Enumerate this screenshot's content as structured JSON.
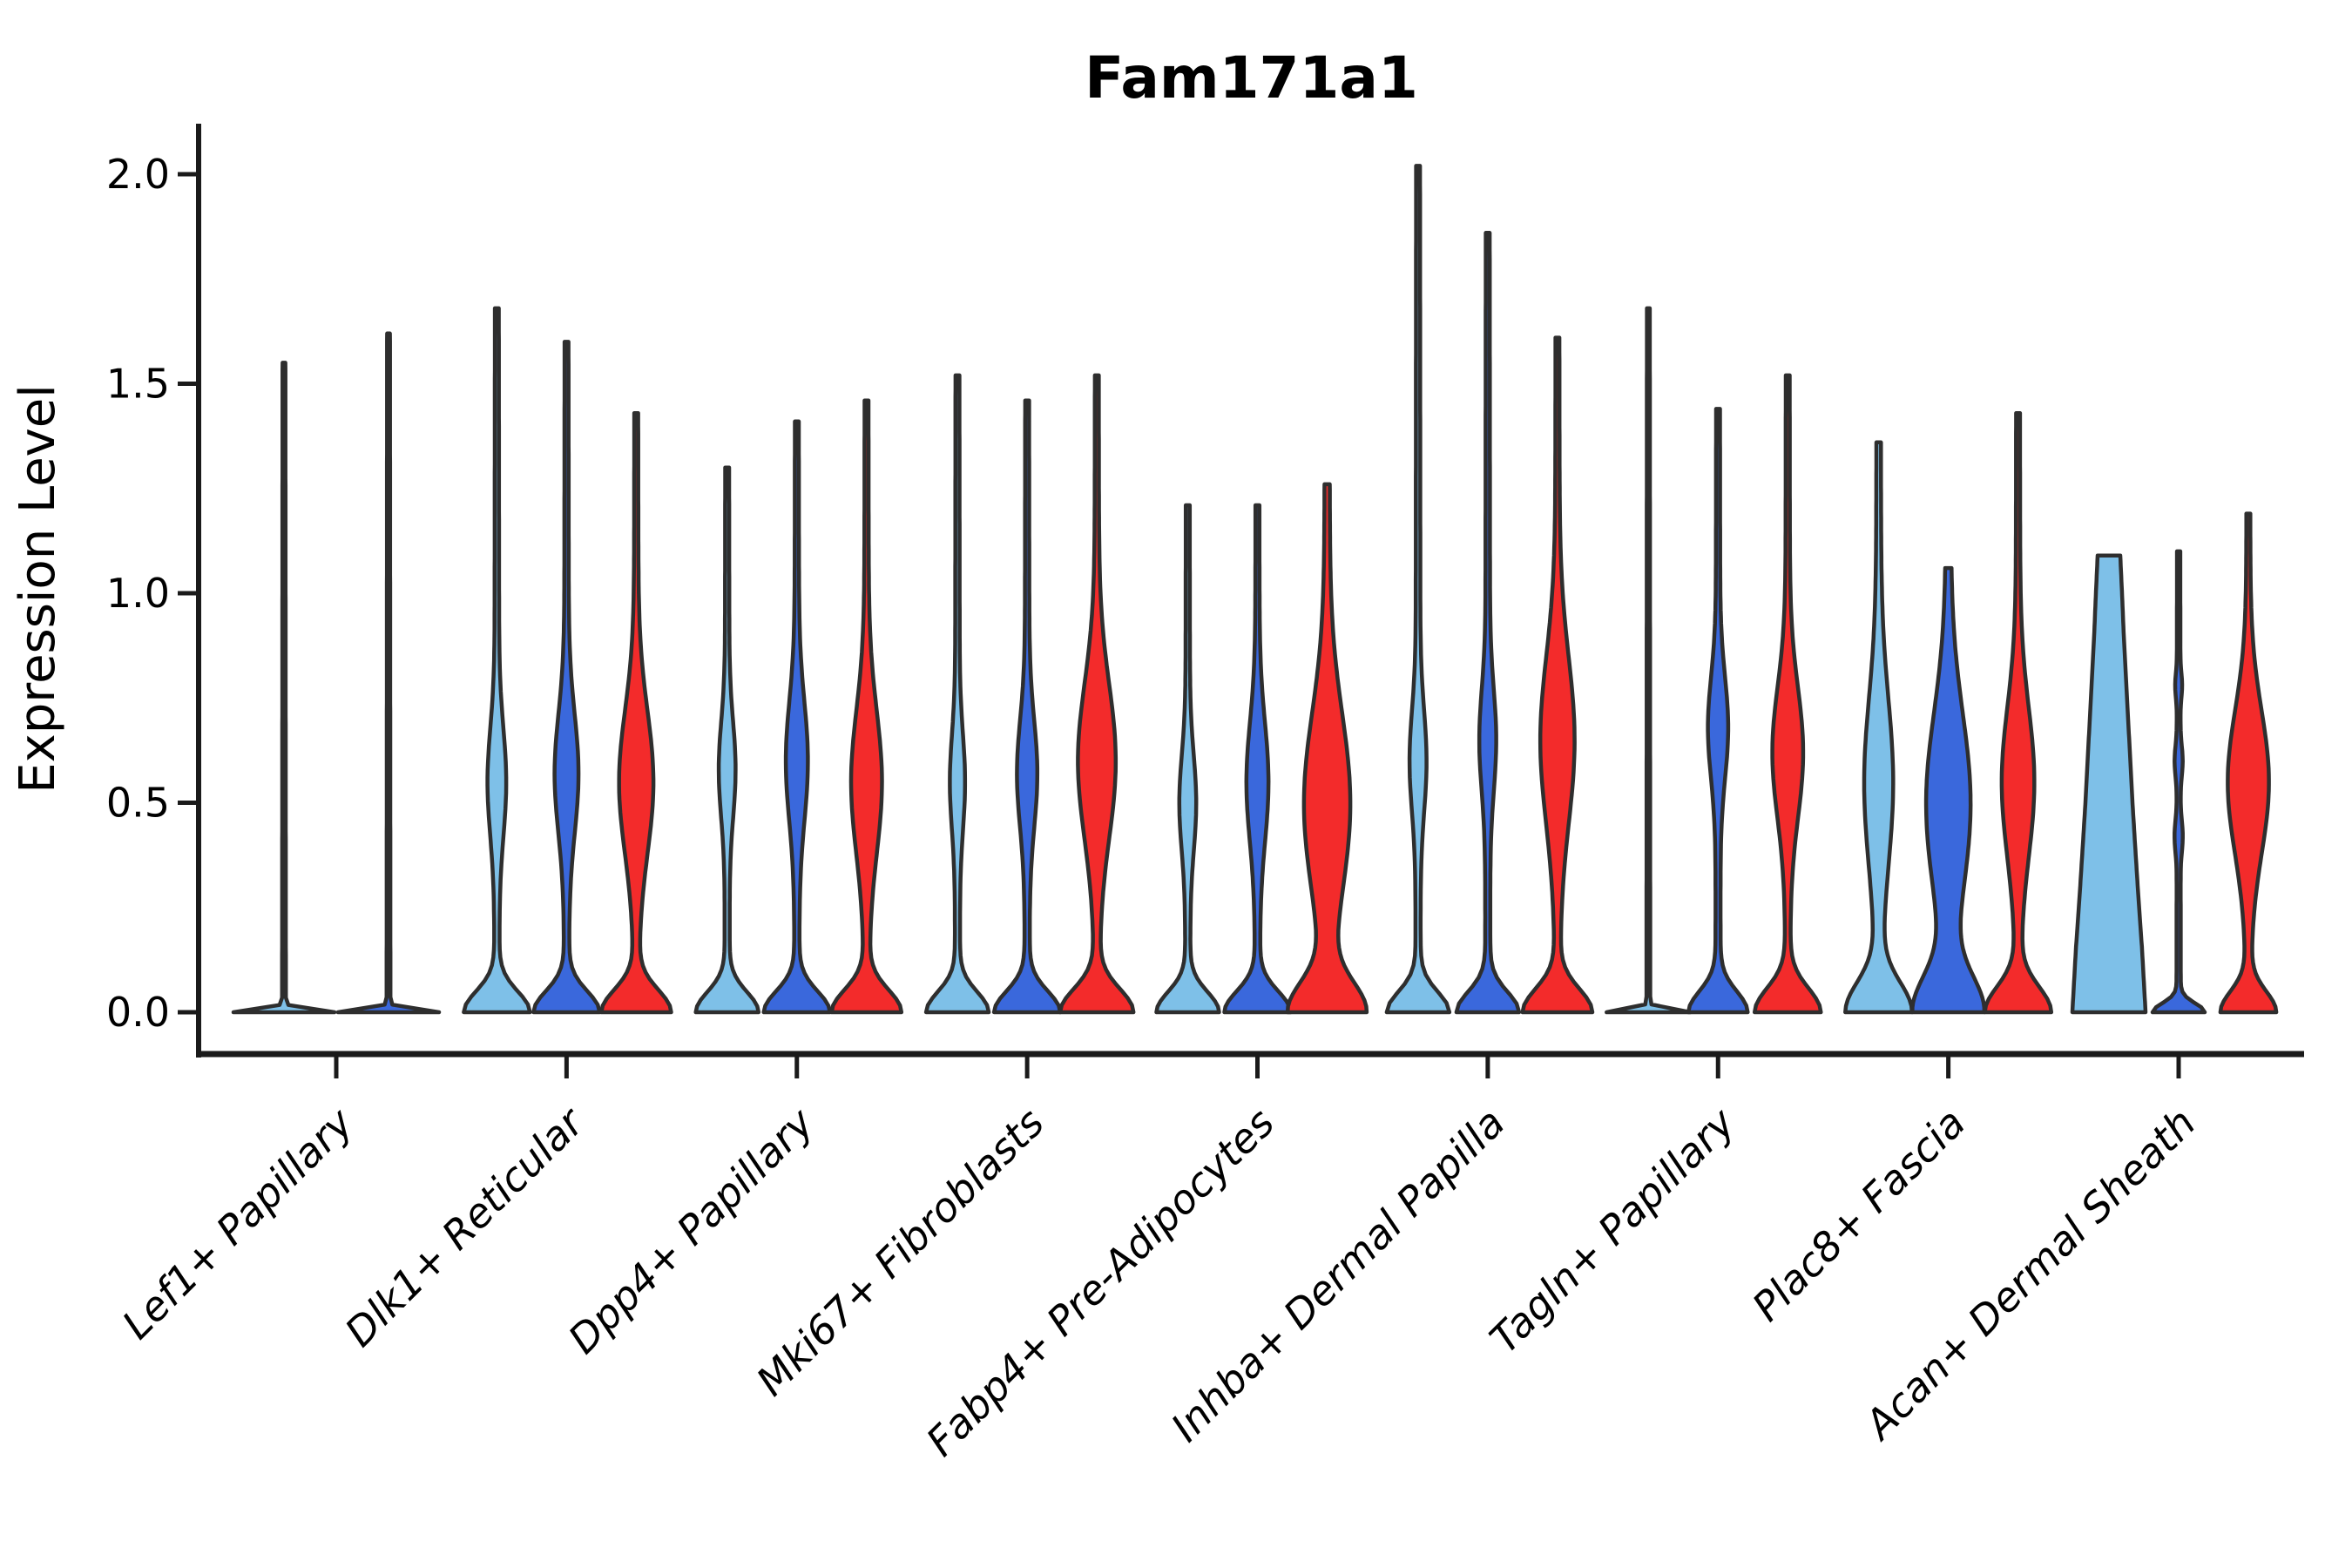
{
  "chart_data": {
    "type": "violin",
    "title": "Fam171a1",
    "ylabel": "Expression Level",
    "yticks": [
      "0.0",
      "0.5",
      "1.0",
      "1.5",
      "2.0"
    ],
    "ytick_values": [
      0.0,
      0.5,
      1.0,
      1.5,
      2.0
    ],
    "ylim": [
      -0.1,
      2.12
    ],
    "grid": "off",
    "legend": "none",
    "palette": {
      "light_blue": "#7EC0E8",
      "dark_blue": "#3A68DC",
      "red": "#F32B2B",
      "outline": "#2e2e2e",
      "axis": "#1a1a1a"
    },
    "categories": [
      "Lef1+ Papillary",
      "Dlk1+ Reticular",
      "Dpp4+ Papillary",
      "Mki67+ Fibroblasts",
      "Fabp4+ Pre-Adipocytes",
      "Inhba+ Dermal Papilla",
      "Tagln+ Papillary",
      "Plac8+ Fascia",
      "Acan+ Dermal Sheath"
    ],
    "groups": [
      {
        "violins": [
          {
            "split": "light_blue",
            "top": 1.55,
            "base_hw": 58,
            "base_h": 0.01,
            "stem": 2.2,
            "bulges": []
          },
          {
            "split": "dark_blue",
            "top": 1.62,
            "base_hw": 58,
            "base_h": 0.01,
            "stem": 2.2,
            "bulges": []
          }
        ]
      },
      {
        "violins": [
          {
            "split": "light_blue",
            "top": 1.68,
            "base_hw": 38,
            "base_h": 0.07,
            "stem": 3,
            "bulges": [
              {
                "c": 0.55,
                "h": 0.18,
                "w": 11
              }
            ]
          },
          {
            "split": "dark_blue",
            "top": 1.6,
            "base_hw": 38,
            "base_h": 0.07,
            "stem": 3,
            "bulges": [
              {
                "c": 0.57,
                "h": 0.2,
                "w": 14
              }
            ]
          },
          {
            "split": "red",
            "top": 1.43,
            "base_hw": 40,
            "base_h": 0.075,
            "stem": 3,
            "bulges": [
              {
                "c": 0.55,
                "h": 0.24,
                "w": 20
              }
            ]
          }
        ]
      },
      {
        "violins": [
          {
            "split": "light_blue",
            "top": 1.3,
            "base_hw": 36,
            "base_h": 0.068,
            "stem": 3,
            "bulges": [
              {
                "c": 0.58,
                "h": 0.16,
                "w": 10
              }
            ]
          },
          {
            "split": "dark_blue",
            "top": 1.41,
            "base_hw": 38,
            "base_h": 0.07,
            "stem": 3,
            "bulges": [
              {
                "c": 0.6,
                "h": 0.2,
                "w": 13
              }
            ]
          },
          {
            "split": "red",
            "top": 1.46,
            "base_hw": 40,
            "base_h": 0.075,
            "stem": 3,
            "bulges": [
              {
                "c": 0.55,
                "h": 0.24,
                "w": 18
              }
            ]
          }
        ]
      },
      {
        "violins": [
          {
            "split": "light_blue",
            "top": 1.52,
            "base_hw": 36,
            "base_h": 0.068,
            "stem": 3,
            "bulges": [
              {
                "c": 0.55,
                "h": 0.16,
                "w": 9
              }
            ]
          },
          {
            "split": "dark_blue",
            "top": 1.46,
            "base_hw": 38,
            "base_h": 0.07,
            "stem": 3,
            "bulges": [
              {
                "c": 0.57,
                "h": 0.18,
                "w": 12
              }
            ]
          },
          {
            "split": "red",
            "top": 1.52,
            "base_hw": 42,
            "base_h": 0.078,
            "stem": 3,
            "bulges": [
              {
                "c": 0.6,
                "h": 0.26,
                "w": 22
              }
            ]
          }
        ]
      },
      {
        "violins": [
          {
            "split": "light_blue",
            "top": 1.21,
            "base_hw": 36,
            "base_h": 0.068,
            "stem": 3,
            "bulges": [
              {
                "c": 0.5,
                "h": 0.16,
                "w": 10
              }
            ]
          },
          {
            "split": "dark_blue",
            "top": 1.21,
            "base_hw": 38,
            "base_h": 0.07,
            "stem": 3,
            "bulges": [
              {
                "c": 0.55,
                "h": 0.2,
                "w": 13
              }
            ]
          },
          {
            "split": "red",
            "top": 1.26,
            "base_hw": 44,
            "base_h": 0.1,
            "stem": 4,
            "bulges": [
              {
                "c": 0.5,
                "h": 0.3,
                "w": 27
              }
            ]
          }
        ]
      },
      {
        "violins": [
          {
            "split": "light_blue",
            "top": 2.02,
            "base_hw": 36,
            "base_h": 0.068,
            "stem": 3,
            "bulges": [
              {
                "c": 0.6,
                "h": 0.17,
                "w": 10
              }
            ]
          },
          {
            "split": "dark_blue",
            "top": 1.86,
            "base_hw": 36,
            "base_h": 0.068,
            "stem": 3,
            "bulges": [
              {
                "c": 0.65,
                "h": 0.17,
                "w": 10
              }
            ]
          },
          {
            "split": "red",
            "top": 1.61,
            "base_hw": 40,
            "base_h": 0.078,
            "stem": 3,
            "bulges": [
              {
                "c": 0.65,
                "h": 0.28,
                "w": 20
              }
            ]
          }
        ]
      },
      {
        "violins": [
          {
            "split": "light_blue",
            "top": 1.68,
            "base_hw": 48,
            "base_h": 0.01,
            "stem": 2.2,
            "bulges": []
          },
          {
            "split": "dark_blue",
            "top": 1.44,
            "base_hw": 34,
            "base_h": 0.07,
            "stem": 3,
            "bulges": [
              {
                "c": 0.68,
                "h": 0.17,
                "w": 12
              }
            ]
          },
          {
            "split": "red",
            "top": 1.52,
            "base_hw": 38,
            "base_h": 0.08,
            "stem": 3,
            "bulges": [
              {
                "c": 0.62,
                "h": 0.22,
                "w": 18
              }
            ]
          }
        ]
      },
      {
        "violins": [
          {
            "split": "light_blue",
            "top": 1.36,
            "base_hw": 38,
            "base_h": 0.1,
            "stem": 3.5,
            "bulges": [
              {
                "c": 0.55,
                "h": 0.28,
                "w": 17
              }
            ]
          },
          {
            "split": "dark_blue",
            "top": 1.06,
            "base_hw": 40,
            "base_h": 0.12,
            "stem": 4,
            "bulges": [
              {
                "c": 0.5,
                "h": 0.3,
                "w": 26
              }
            ]
          },
          {
            "split": "red",
            "top": 1.43,
            "base_hw": 38,
            "base_h": 0.085,
            "stem": 3,
            "bulges": [
              {
                "c": 0.55,
                "h": 0.25,
                "w": 19
              }
            ]
          }
        ]
      },
      {
        "violins": [
          {
            "split": "light_blue",
            "shape": "cone",
            "top": 1.09,
            "points": [
              [
                0,
                42
              ],
              [
                0.15,
                38
              ],
              [
                0.3,
                33
              ],
              [
                0.5,
                27
              ],
              [
                0.7,
                22
              ],
              [
                0.9,
                17
              ],
              [
                1.0,
                15
              ],
              [
                1.09,
                13
              ]
            ]
          },
          {
            "split": "dark_blue",
            "top": 1.1,
            "base_hw": 30,
            "base_h": 0.03,
            "stem": 2.5,
            "bulges": [
              {
                "c": 0.42,
                "h": 0.05,
                "w": 5
              },
              {
                "c": 0.6,
                "h": 0.05,
                "w": 5
              },
              {
                "c": 0.78,
                "h": 0.04,
                "w": 4.5
              }
            ]
          },
          {
            "split": "red",
            "top": 1.19,
            "base_hw": 32,
            "base_h": 0.07,
            "stem": 3,
            "bulges": [
              {
                "c": 0.55,
                "h": 0.24,
                "w": 24
              }
            ]
          }
        ]
      }
    ]
  }
}
